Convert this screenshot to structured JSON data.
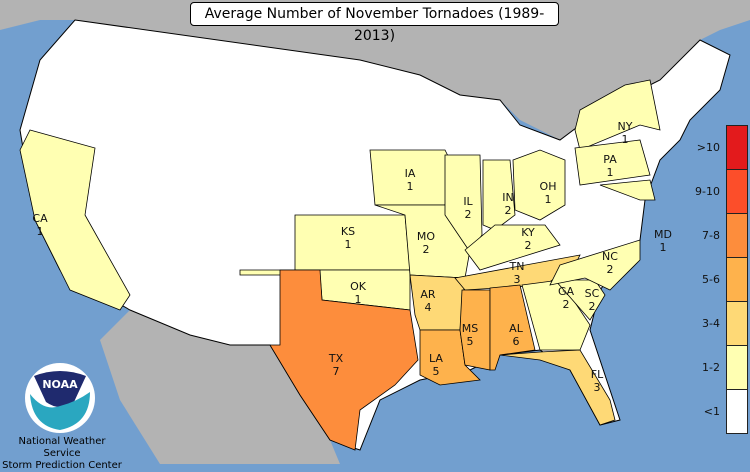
{
  "title": "Average Number of November Tornadoes (1989-2013)",
  "legend": {
    "bins": [
      {
        "label": ">10",
        "color": "#e31a1c"
      },
      {
        "label": "9-10",
        "color": "#fc4e2a"
      },
      {
        "label": "7-8",
        "color": "#fd8d3c"
      },
      {
        "label": "5-6",
        "color": "#feb24c"
      },
      {
        "label": "3-4",
        "color": "#fed976"
      },
      {
        "label": "1-2",
        "color": "#ffffb2"
      },
      {
        "label": "<1",
        "color": "#ffffff"
      }
    ]
  },
  "states": [
    {
      "abbr": "CA",
      "value": "1",
      "bin": "1-2"
    },
    {
      "abbr": "KS",
      "value": "1",
      "bin": "1-2"
    },
    {
      "abbr": "OK",
      "value": "1",
      "bin": "1-2"
    },
    {
      "abbr": "TX",
      "value": "7",
      "bin": "7-8"
    },
    {
      "abbr": "IA",
      "value": "1",
      "bin": "1-2"
    },
    {
      "abbr": "MO",
      "value": "2",
      "bin": "1-2"
    },
    {
      "abbr": "AR",
      "value": "4",
      "bin": "3-4"
    },
    {
      "abbr": "LA",
      "value": "5",
      "bin": "5-6"
    },
    {
      "abbr": "IL",
      "value": "2",
      "bin": "1-2"
    },
    {
      "abbr": "IN",
      "value": "2",
      "bin": "1-2"
    },
    {
      "abbr": "OH",
      "value": "1",
      "bin": "1-2"
    },
    {
      "abbr": "KY",
      "value": "2",
      "bin": "1-2"
    },
    {
      "abbr": "TN",
      "value": "3",
      "bin": "3-4"
    },
    {
      "abbr": "MS",
      "value": "5",
      "bin": "5-6"
    },
    {
      "abbr": "AL",
      "value": "6",
      "bin": "5-6"
    },
    {
      "abbr": "GA",
      "value": "2",
      "bin": "1-2"
    },
    {
      "abbr": "FL",
      "value": "3",
      "bin": "3-4"
    },
    {
      "abbr": "SC",
      "value": "2",
      "bin": "1-2"
    },
    {
      "abbr": "NC",
      "value": "2",
      "bin": "1-2"
    },
    {
      "abbr": "NY",
      "value": "1",
      "bin": "1-2"
    },
    {
      "abbr": "PA",
      "value": "1",
      "bin": "1-2"
    },
    {
      "abbr": "MD",
      "value": "1",
      "bin": "1-2"
    }
  ],
  "colors": {
    "water": "#729fcf",
    "foreign_land": "#b3b3b3",
    "no_data_land": "#ffffff"
  },
  "logo": {
    "text": "NOAA"
  },
  "credit": {
    "line1": "National Weather Service",
    "line2": "Storm Prediction Center"
  }
}
